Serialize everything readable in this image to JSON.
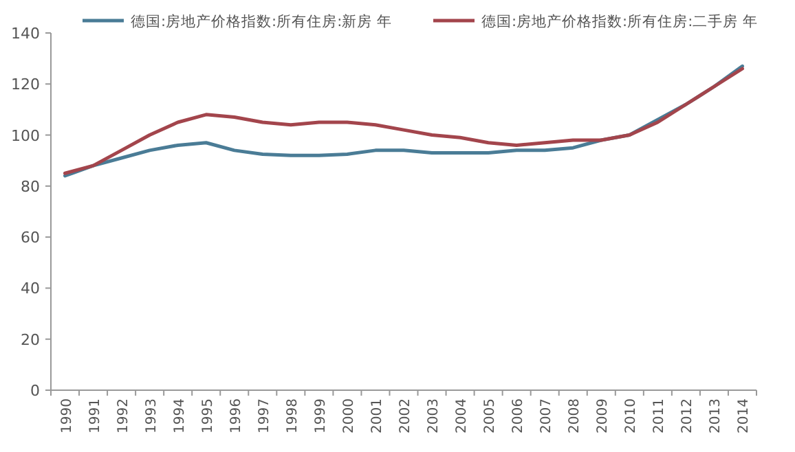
{
  "chart_data": {
    "type": "line",
    "categories": [
      "1990",
      "1991",
      "1992",
      "1993",
      "1994",
      "1995",
      "1996",
      "1997",
      "1998",
      "1999",
      "2000",
      "2001",
      "2002",
      "2003",
      "2004",
      "2005",
      "2006",
      "2007",
      "2008",
      "2009",
      "2010",
      "2011",
      "2012",
      "2013",
      "2014"
    ],
    "series": [
      {
        "name": "德国:房地产价格指数:所有住房:新房 年",
        "color": "#4a7c96",
        "values": [
          84,
          88,
          91,
          94,
          96,
          97,
          94,
          92.5,
          92,
          92,
          92.5,
          94,
          94,
          93,
          93,
          93,
          94,
          94,
          95,
          98,
          100,
          106,
          112,
          119,
          127
        ]
      },
      {
        "name": "德国:房地产价格指数:所有住房:二手房 年",
        "color": "#a3454c",
        "values": [
          85,
          88,
          94,
          100,
          105,
          108,
          107,
          105,
          104,
          105,
          105,
          104,
          102,
          100,
          99,
          97,
          96,
          97,
          98,
          98,
          100,
          105,
          112,
          119,
          126
        ]
      }
    ],
    "ylim": [
      0,
      140
    ],
    "yticks": [
      0,
      20,
      40,
      60,
      80,
      100,
      120,
      140
    ],
    "legend": "top",
    "grid": false,
    "marker": "none",
    "line_style": "solid"
  }
}
